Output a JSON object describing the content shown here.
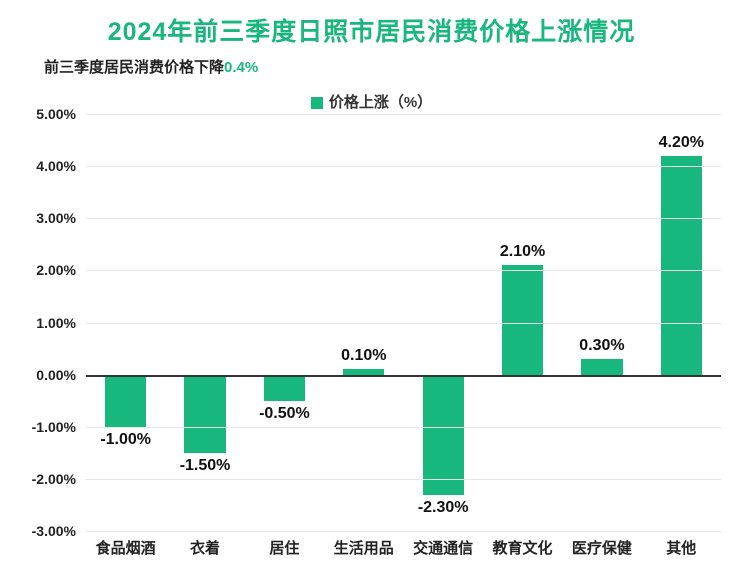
{
  "chart": {
    "type": "bar",
    "title": "2024年前三季度日照市居民消费价格上涨情况",
    "title_color": "#18b77e",
    "title_fontsize": 25,
    "subtitle_prefix": "前三季度居民消费价格下降",
    "subtitle_highlight": "0.4%",
    "subtitle_color": "#222222",
    "subtitle_highlight_color": "#18b77e",
    "subtitle_fontsize": 15,
    "legend_label": "价格上涨（%）",
    "legend_color": "#18b77e",
    "legend_fontsize": 15,
    "background_color": "#ffffff",
    "grid_color": "#e6e6e6",
    "axis_color": "#333333",
    "tick_color": "#222222",
    "tick_fontsize": 14,
    "xlabel_color": "#222222",
    "xlabel_fontsize": 15,
    "value_label_color": "#111111",
    "value_label_fontsize": 16,
    "bar_color": "#18b77e",
    "bar_width_ratio": 0.52,
    "y_min": -3.0,
    "y_max": 5.0,
    "y_ticks": [
      -3.0,
      -2.0,
      -1.0,
      0.0,
      1.0,
      2.0,
      3.0,
      4.0,
      5.0
    ],
    "y_tick_labels": [
      "-3.00%",
      "-2.00%",
      "-1.00%",
      "0.00%",
      "1.00%",
      "2.00%",
      "3.00%",
      "4.00%",
      "5.00%"
    ],
    "categories": [
      "食品烟酒",
      "衣着",
      "居住",
      "生活用品",
      "交通通信",
      "教育文化",
      "医疗保健",
      "其他"
    ],
    "values": [
      -1.0,
      -1.5,
      -0.5,
      0.1,
      -2.3,
      2.1,
      0.3,
      4.2
    ],
    "value_labels": [
      "-1.00%",
      "-1.50%",
      "-0.50%",
      "0.10%",
      "-2.30%",
      "2.10%",
      "0.30%",
      "4.20%"
    ]
  }
}
